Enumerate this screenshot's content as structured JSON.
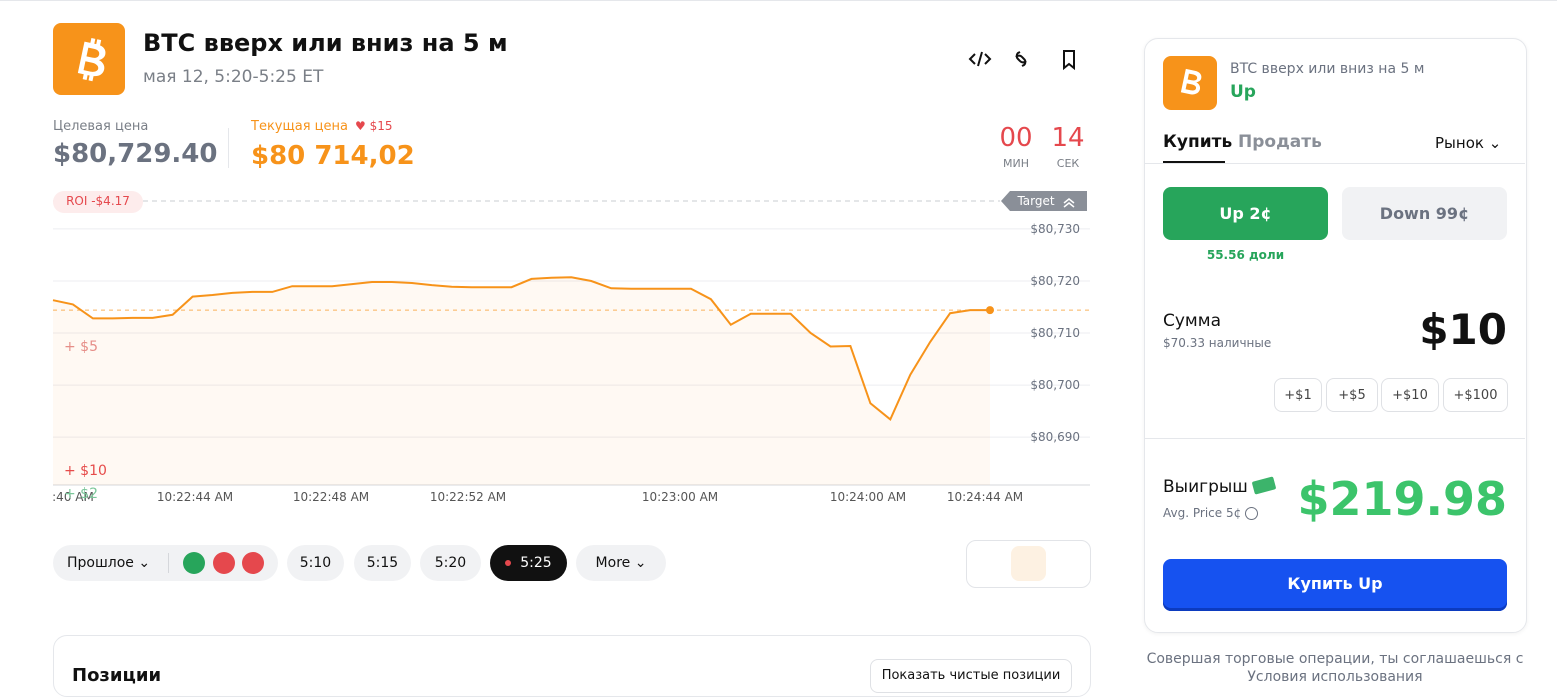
{
  "header": {
    "title": "BTC вверх или вниз на 5 м",
    "subtitle": "мая 12, 5:20-5:25 ET"
  },
  "prices": {
    "target_label": "Целевая цена",
    "target_value": "$80,729.40",
    "current_label": "Текущая цена",
    "current_delta": "$15",
    "current_value": "$80 714,02"
  },
  "countdown": {
    "minutes": "00",
    "minutes_label": "МИН",
    "seconds": "14",
    "seconds_label": "СЕК"
  },
  "chart_overlay": {
    "roi": "ROI -$4.17",
    "target": "Target",
    "markers": [
      "+ $5",
      "+ $10",
      "+ $2"
    ]
  },
  "chart_data": {
    "type": "line",
    "series": [
      {
        "name": "BTC",
        "color": "#f7931a",
        "values": [
          80716.3,
          80715.5,
          80712.8,
          80712.8,
          80712.9,
          80712.9,
          80713.5,
          80717.0,
          80717.3,
          80717.7,
          80717.9,
          80717.9,
          80719.0,
          80719.0,
          80719.0,
          80719.4,
          80719.8,
          80719.8,
          80719.6,
          80719.2,
          80718.9,
          80718.8,
          80718.8,
          80718.8,
          80720.4,
          80720.6,
          80720.7,
          80720.0,
          80718.6,
          80718.5,
          80718.5,
          80718.5,
          80718.5,
          80716.5,
          80711.6,
          80713.7,
          80713.7,
          80713.7,
          80710.0,
          80707.4,
          80707.5,
          80696.5,
          80693.4,
          80702.0,
          80708.3,
          80713.8,
          80714.4,
          80714.4
        ]
      }
    ],
    "ylim": [
      80680.8,
      80736.9
    ],
    "yticks": [
      {
        "value": 80690,
        "label": "$80,690"
      },
      {
        "value": 80700,
        "label": "$80,700"
      },
      {
        "value": 80710,
        "label": "$80,710"
      },
      {
        "value": 80720,
        "label": "$80,720"
      },
      {
        "value": 80730,
        "label": "$80,730"
      }
    ],
    "x_labels": [
      ":40 AM",
      "10:22:44 AM",
      "10:22:48 AM",
      "10:22:52 AM",
      "10:23:00 AM",
      "10:24:00 AM",
      "10:24:44 AM"
    ],
    "grid": true
  },
  "controls": {
    "past": "Прошлое",
    "times": [
      "5:10",
      "5:15",
      "5:20",
      "5:25"
    ],
    "more": "More"
  },
  "positions": {
    "title": "Позиции",
    "button": "Показать чистые позиции"
  },
  "panel": {
    "title": "BTC вверх или вниз на 5 м",
    "outcome": "Up",
    "tabs": [
      "Купить",
      "Продать"
    ],
    "order_type": "Рынок",
    "up_button": "Up 2¢",
    "down_button": "Down 99¢",
    "shares": "55.56 доли",
    "amount_label": "Сумма",
    "cash": "$70.33 наличные",
    "amount": "$10",
    "increments": [
      "+$1",
      "+$5",
      "+$10",
      "+$100"
    ],
    "win_label": "Выигрыш",
    "avg_price": "Avg. Price 5¢",
    "win_value": "$219.98",
    "buy_button": "Купить Up"
  },
  "footer": {
    "line1": "Совершая торговые операции, ты соглашаешься с",
    "line2": "Условия использования"
  }
}
